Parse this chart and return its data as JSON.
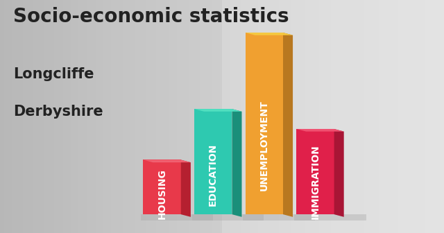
{
  "title": "Socio-economic statistics",
  "subtitle1": "Longcliffe",
  "subtitle2": "Derbyshire",
  "categories": [
    "HOUSING",
    "EDUCATION",
    "UNEMPLOYMENT",
    "IMMIGRATION"
  ],
  "values": [
    0.3,
    0.58,
    1.0,
    0.47
  ],
  "bar_front_colors": [
    "#e8394a",
    "#2ec9b0",
    "#f0a030",
    "#e0204a"
  ],
  "bar_side_colors": [
    "#b52030",
    "#1a8f7a",
    "#b87820",
    "#a81535"
  ],
  "bar_top_colors": [
    "#f06070",
    "#50dfc0",
    "#f5c840",
    "#f05070"
  ],
  "shadow_color": "#c0c0c0",
  "background_color_tl": "#c8c8c8",
  "background_color_br": "#e8e8e8",
  "text_color": "#222222",
  "title_fontsize": 20,
  "subtitle_fontsize": 15,
  "label_fontsize": 10
}
